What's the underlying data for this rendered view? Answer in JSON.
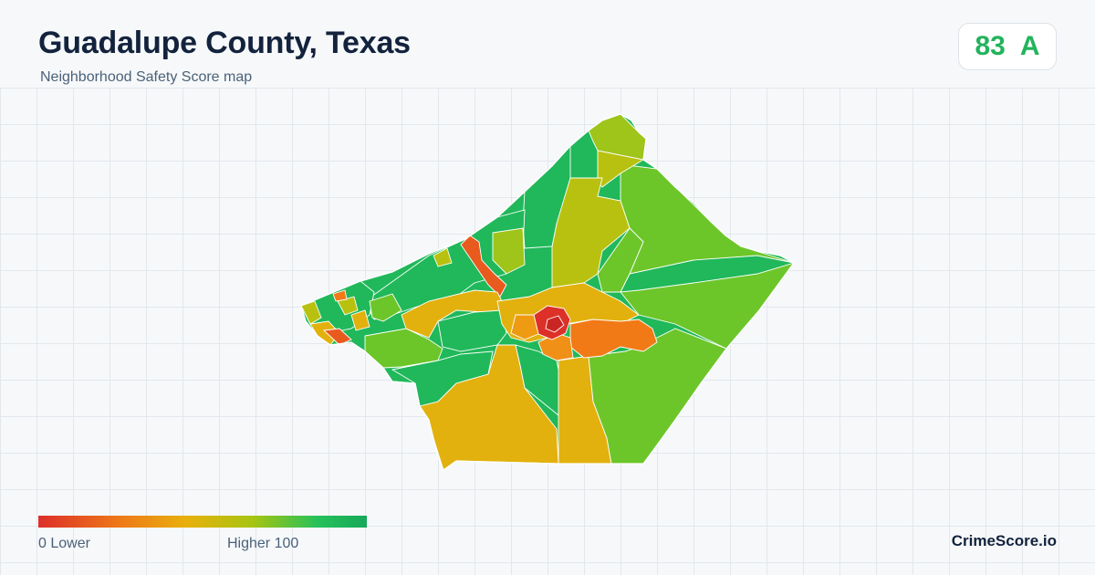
{
  "header": {
    "title": "Guadalupe County, Texas",
    "subtitle": "Neighborhood Safety Score map"
  },
  "score": {
    "value": "83",
    "grade": "A",
    "color": "#22b45c"
  },
  "legend": {
    "min_label": "0  Lower",
    "max_label": "Higher  100",
    "colors": [
      "#dd2f2a",
      "#ee7a18",
      "#e8b00c",
      "#a8c410",
      "#26c15a",
      "#17a85a"
    ]
  },
  "brand": "CrimeScore.io",
  "map_palette": {
    "dark_green": "#20b85a",
    "green": "#6cc62a",
    "yellow_green": "#b9c110",
    "gold": "#e2b10e",
    "orange": "#f17a16",
    "red": "#dc3028"
  }
}
